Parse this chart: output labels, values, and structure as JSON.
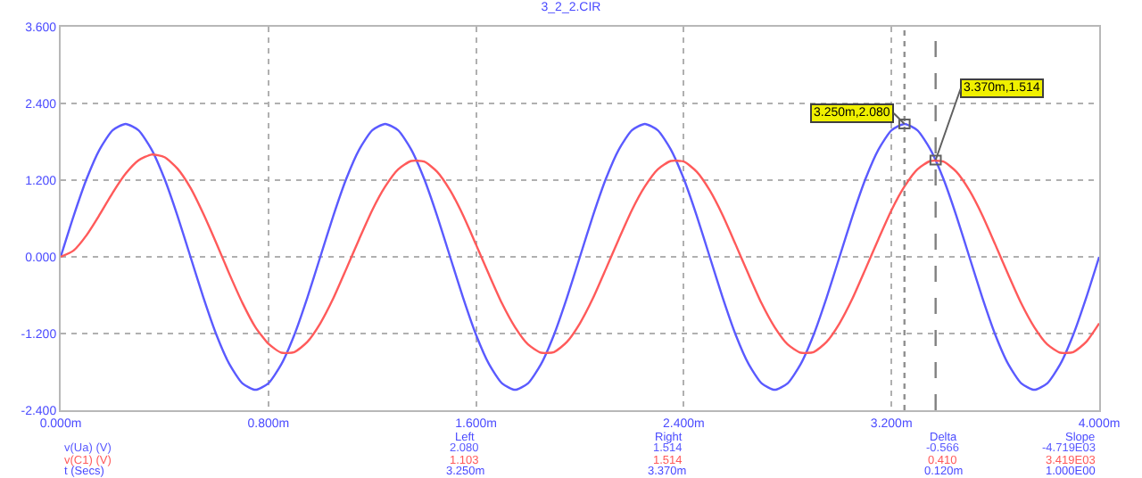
{
  "chart_data": {
    "type": "line",
    "title": "3_2_2.CIR",
    "x": [
      0,
      0.05,
      0.1,
      0.15,
      0.2,
      0.25,
      0.3,
      0.35,
      0.4,
      0.45,
      0.5,
      0.55,
      0.6,
      0.65,
      0.7,
      0.75,
      0.8,
      0.85,
      0.9,
      0.95,
      1.0,
      1.05,
      1.1,
      1.15,
      1.2,
      1.25,
      1.3,
      1.35,
      1.4,
      1.45,
      1.5,
      1.55,
      1.6,
      1.65,
      1.7,
      1.75,
      1.8,
      1.85,
      1.9,
      1.95,
      2.0,
      2.05,
      2.1,
      2.15,
      2.2,
      2.25,
      2.3,
      2.35,
      2.4,
      2.45,
      2.5,
      2.55,
      2.6,
      2.65,
      2.7,
      2.75,
      2.8,
      2.85,
      2.9,
      2.95,
      3.0,
      3.05,
      3.1,
      3.15,
      3.2,
      3.25,
      3.3,
      3.35,
      3.4,
      3.45,
      3.5,
      3.55,
      3.6,
      3.65,
      3.7,
      3.75,
      3.8,
      3.85,
      3.9,
      3.95,
      4.0
    ],
    "series": [
      {
        "name": "v(Ua) (V)",
        "color": "#5a5aff",
        "values": [
          0,
          0.64,
          1.22,
          1.68,
          1.98,
          2.08,
          1.98,
          1.68,
          1.22,
          0.64,
          0,
          -0.64,
          -1.22,
          -1.68,
          -1.98,
          -2.08,
          -1.98,
          -1.68,
          -1.22,
          -0.64,
          0,
          0.64,
          1.22,
          1.68,
          1.98,
          2.08,
          1.98,
          1.68,
          1.22,
          0.64,
          0,
          -0.64,
          -1.22,
          -1.68,
          -1.98,
          -2.08,
          -1.98,
          -1.68,
          -1.22,
          -0.64,
          0,
          0.64,
          1.22,
          1.68,
          1.98,
          2.08,
          1.98,
          1.68,
          1.22,
          0.64,
          0,
          -0.64,
          -1.22,
          -1.68,
          -1.98,
          -2.08,
          -1.98,
          -1.68,
          -1.22,
          -0.64,
          0,
          0.64,
          1.22,
          1.68,
          1.98,
          2.08,
          1.98,
          1.68,
          1.22,
          0.64,
          0,
          -0.64,
          -1.22,
          -1.68,
          -1.98,
          -2.08,
          -1.98,
          -1.68,
          -1.22,
          -0.64,
          0
        ]
      },
      {
        "name": "v(C1) (V)",
        "color": "#ff5a5a",
        "values": [
          0,
          0.1,
          0.34,
          0.66,
          1.0,
          1.3,
          1.51,
          1.6,
          1.56,
          1.38,
          1.08,
          0.67,
          0.21,
          -0.27,
          -0.72,
          -1.1,
          -1.36,
          -1.5,
          -1.49,
          -1.33,
          -1.04,
          -0.65,
          -0.19,
          0.28,
          0.73,
          1.1,
          1.37,
          1.5,
          1.49,
          1.33,
          1.04,
          0.65,
          0.19,
          -0.28,
          -0.73,
          -1.1,
          -1.37,
          -1.5,
          -1.49,
          -1.33,
          -1.04,
          -0.65,
          -0.19,
          0.28,
          0.73,
          1.1,
          1.37,
          1.5,
          1.49,
          1.33,
          1.04,
          0.65,
          0.19,
          -0.28,
          -0.73,
          -1.1,
          -1.37,
          -1.5,
          -1.49,
          -1.33,
          -1.04,
          -0.65,
          -0.19,
          0.28,
          0.73,
          1.1,
          1.37,
          1.5,
          1.49,
          1.33,
          1.04,
          0.65,
          0.19,
          -0.28,
          -0.73,
          -1.1,
          -1.37,
          -1.5,
          -1.49,
          -1.33,
          -1.04
        ]
      }
    ],
    "xlim": [
      0,
      4.0
    ],
    "xticks": [
      {
        "value": 0,
        "label": "0.000m"
      },
      {
        "value": 0.8,
        "label": "0.800m"
      },
      {
        "value": 1.6,
        "label": "1.600m"
      },
      {
        "value": 2.4,
        "label": "2.400m"
      },
      {
        "value": 3.2,
        "label": "3.200m"
      },
      {
        "value": 4.0,
        "label": "4.000m"
      }
    ],
    "ylim": [
      -2.4,
      3.6
    ],
    "yticks": [
      {
        "value": -2.4,
        "label": "-2.400"
      },
      {
        "value": -1.2,
        "label": "-1.200"
      },
      {
        "value": 0,
        "label": "0.000"
      },
      {
        "value": 1.2,
        "label": "1.200"
      },
      {
        "value": 2.4,
        "label": "2.400"
      },
      {
        "value": 3.6,
        "label": "3.600"
      }
    ],
    "grid": true,
    "line_style": "solid",
    "ref_lines": [
      {
        "axis": "x",
        "value": 3.25,
        "color": "#909090",
        "line_style": "dotted"
      },
      {
        "axis": "x",
        "value": 3.37,
        "color": "#808080",
        "line_style": "dashed"
      }
    ],
    "annotations": [
      {
        "text": "3.250m,2.080",
        "x": 3.25,
        "y": 2.08
      },
      {
        "text": "3.370m,1.514",
        "x": 3.37,
        "y": 1.514
      },
      "t (Secs)",
      "Left\n2.080\n1.103\n3.250m",
      "Right\n1.514\n1.514\n3.370m",
      "Delta\n-0.566\n0.410\n0.120m",
      "Slope\n-4.719E03\n3.419E03\n1.000E00"
    ]
  }
}
